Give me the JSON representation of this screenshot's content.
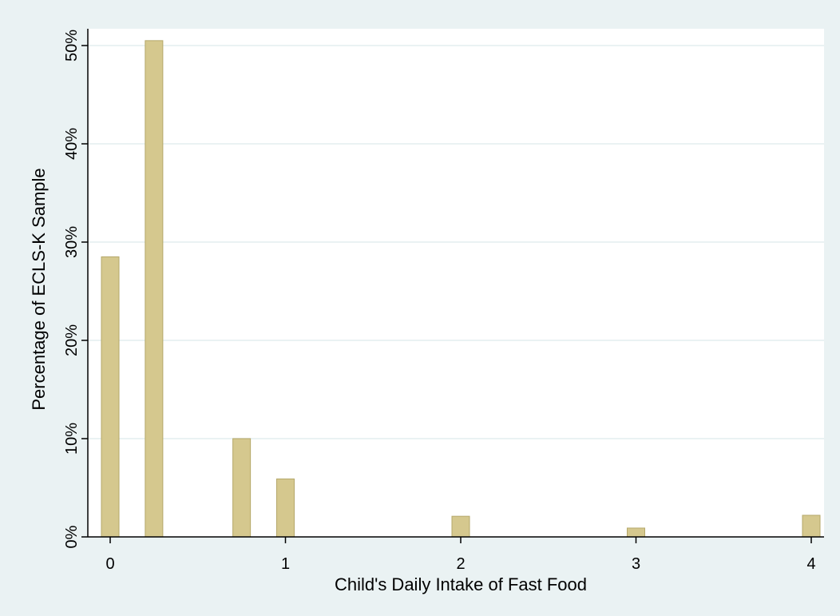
{
  "chart_data": {
    "type": "bar",
    "title": "",
    "xlabel": "Child's Daily Intake of Fast Food",
    "ylabel": "Percentage of ECLS-K Sample",
    "x": [
      0.0,
      0.25,
      0.75,
      1.0,
      2.0,
      3.0,
      4.0
    ],
    "values": [
      28.5,
      50.5,
      10.0,
      5.9,
      2.1,
      0.9,
      2.2
    ],
    "xlim": [
      0,
      4
    ],
    "ylim": [
      0,
      50
    ],
    "xticks": [
      0,
      1,
      2,
      3,
      4
    ],
    "yticks": [
      0,
      10,
      20,
      30,
      40,
      50
    ],
    "xtick_labels": [
      "0",
      "1",
      "2",
      "3",
      "4"
    ],
    "ytick_labels": [
      "0%",
      "10%",
      "20%",
      "30%",
      "40%",
      "50%"
    ],
    "grid": "horizontal",
    "legend": "none",
    "colors": {
      "bar_fill": "#d5c88e",
      "bar_stroke": "#b5a86a",
      "background": "#eaf2f3",
      "plot_background": "#ffffff",
      "grid": "#eaf2f3"
    }
  }
}
